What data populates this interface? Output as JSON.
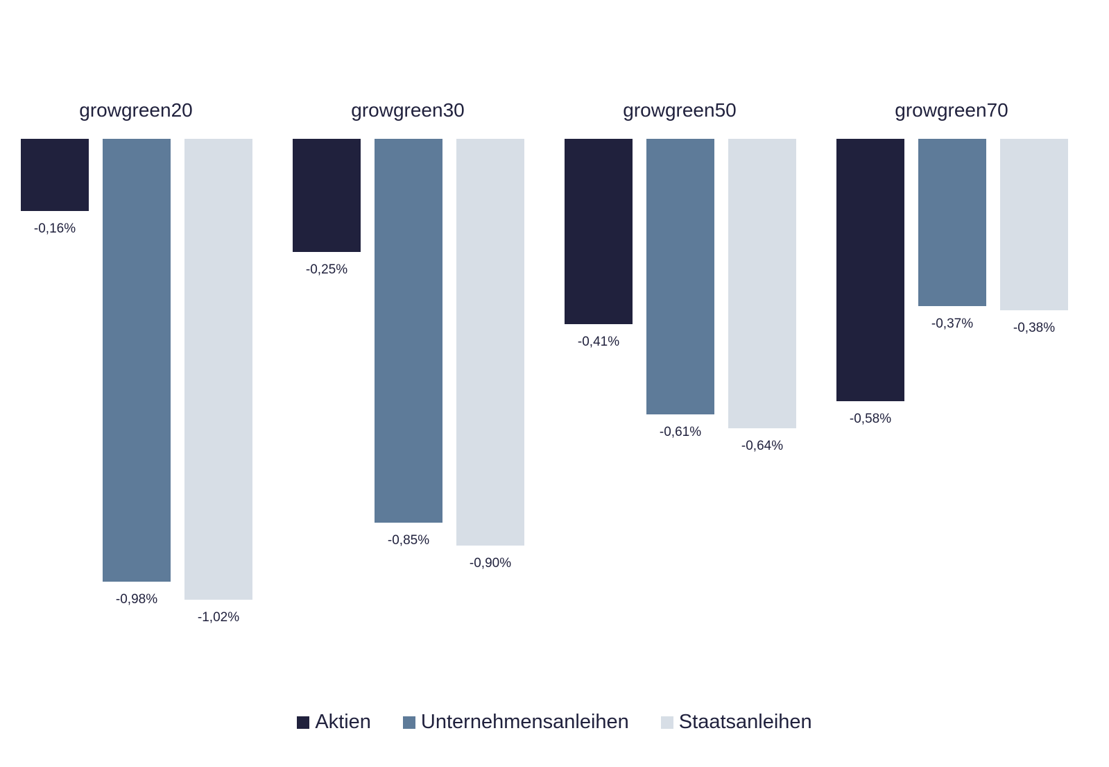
{
  "chart_data": {
    "type": "bar",
    "title": "",
    "xlabel": "",
    "ylabel": "",
    "categories": [
      "growgreen20",
      "growgreen30",
      "growgreen50",
      "growgreen70"
    ],
    "series": [
      {
        "name": "Aktien",
        "color": "#20213d",
        "values": [
          -0.16,
          -0.25,
          -0.41,
          -0.58
        ],
        "labels": [
          "-0,16%",
          "-0,25%",
          "-0,41%",
          "-0,58%"
        ]
      },
      {
        "name": "Unternehmensanleihen",
        "color": "#5e7b99",
        "values": [
          -0.98,
          -0.85,
          -0.61,
          -0.37
        ],
        "labels": [
          "-0,98%",
          "-0,85%",
          "-0,61%",
          "-0,37%"
        ]
      },
      {
        "name": "Staatsanleihen",
        "color": "#d7dee6",
        "values": [
          -1.02,
          -0.9,
          -0.64,
          -0.38
        ],
        "labels": [
          "-1,02%",
          "-0,90%",
          "-0,64%",
          "-0,38%"
        ]
      }
    ],
    "ylim": [
      -1.1,
      0
    ],
    "grid": false,
    "legend_position": "bottom"
  },
  "legend": {
    "items": [
      {
        "label": "Aktien",
        "color": "#20213d"
      },
      {
        "label": "Unternehmensanleihen",
        "color": "#5e7b99"
      },
      {
        "label": "Staatsanleihen",
        "color": "#d7dee6"
      }
    ]
  }
}
